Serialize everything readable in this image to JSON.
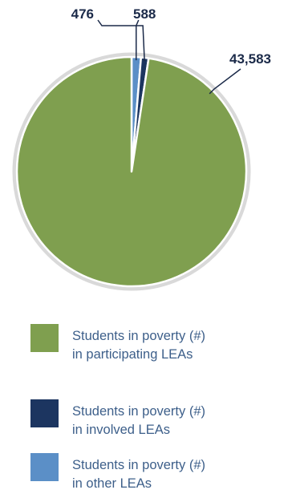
{
  "chart_data": {
    "type": "pie",
    "series": [
      {
        "name": "Students in poverty (#) in participating LEAs",
        "value": 43583,
        "label": "43,583",
        "color": "#7f9f4f"
      },
      {
        "name": "Students in poverty (#) in involved LEAs",
        "value": 476,
        "label": "476",
        "color": "#1c3560"
      },
      {
        "name": "Students in poverty (#) in other LEAs",
        "value": 588,
        "label": "588",
        "color": "#5b8fc7"
      }
    ],
    "legend_position": "bottom",
    "legend": [
      {
        "line1": "Students in poverty (#)",
        "line2": "in participating LEAs",
        "color": "#7f9f4f"
      },
      {
        "line1": "Students in poverty (#)",
        "line2": "in involved LEAs",
        "color": "#1c3560"
      },
      {
        "line1": "Students in poverty (#)",
        "line2": "in other LEAs",
        "color": "#5b8fc7"
      }
    ]
  }
}
